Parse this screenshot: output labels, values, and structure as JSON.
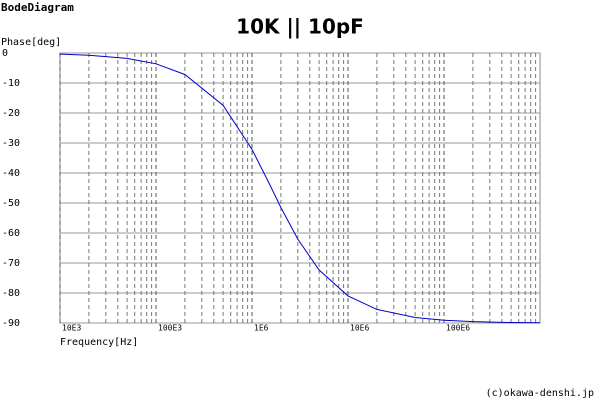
{
  "chart_data": {
    "type": "line",
    "app_title": "BodeDiagram",
    "title": "10K || 10pF",
    "y_label": "Phase[deg]",
    "x_label": "Frequency[Hz]",
    "credit": "(c)okawa-denshi.jp",
    "x": [
      10000,
      20000,
      50000,
      100000,
      200000,
      500000,
      1000000,
      1500000,
      2000000,
      3000000,
      5000000,
      10000000,
      20000000,
      50000000,
      100000000,
      200000000,
      500000000,
      1000000000
    ],
    "series": [
      {
        "color": "#0000cc",
        "values": [
          -0.36,
          -0.72,
          -1.8,
          -3.6,
          -7.16,
          -17.44,
          -32.14,
          -43.3,
          -51.49,
          -62.05,
          -72.34,
          -80.96,
          -85.45,
          -88.18,
          -89.09,
          -89.54,
          -89.82,
          -89.91
        ]
      }
    ],
    "xlim": [
      10000,
      1000000000
    ],
    "xlog": true,
    "xticks": [
      {
        "value": 10000,
        "label": "10E3"
      },
      {
        "value": 100000,
        "label": "100E3"
      },
      {
        "value": 1000000,
        "label": "1E6"
      },
      {
        "value": 10000000,
        "label": "10E6"
      },
      {
        "value": 100000000,
        "label": "100E6"
      }
    ],
    "ylim": [
      -90,
      0
    ],
    "yticks": [
      0,
      -10,
      -20,
      -30,
      -40,
      -50,
      -60,
      -70,
      -80,
      -90
    ],
    "grid": true
  }
}
